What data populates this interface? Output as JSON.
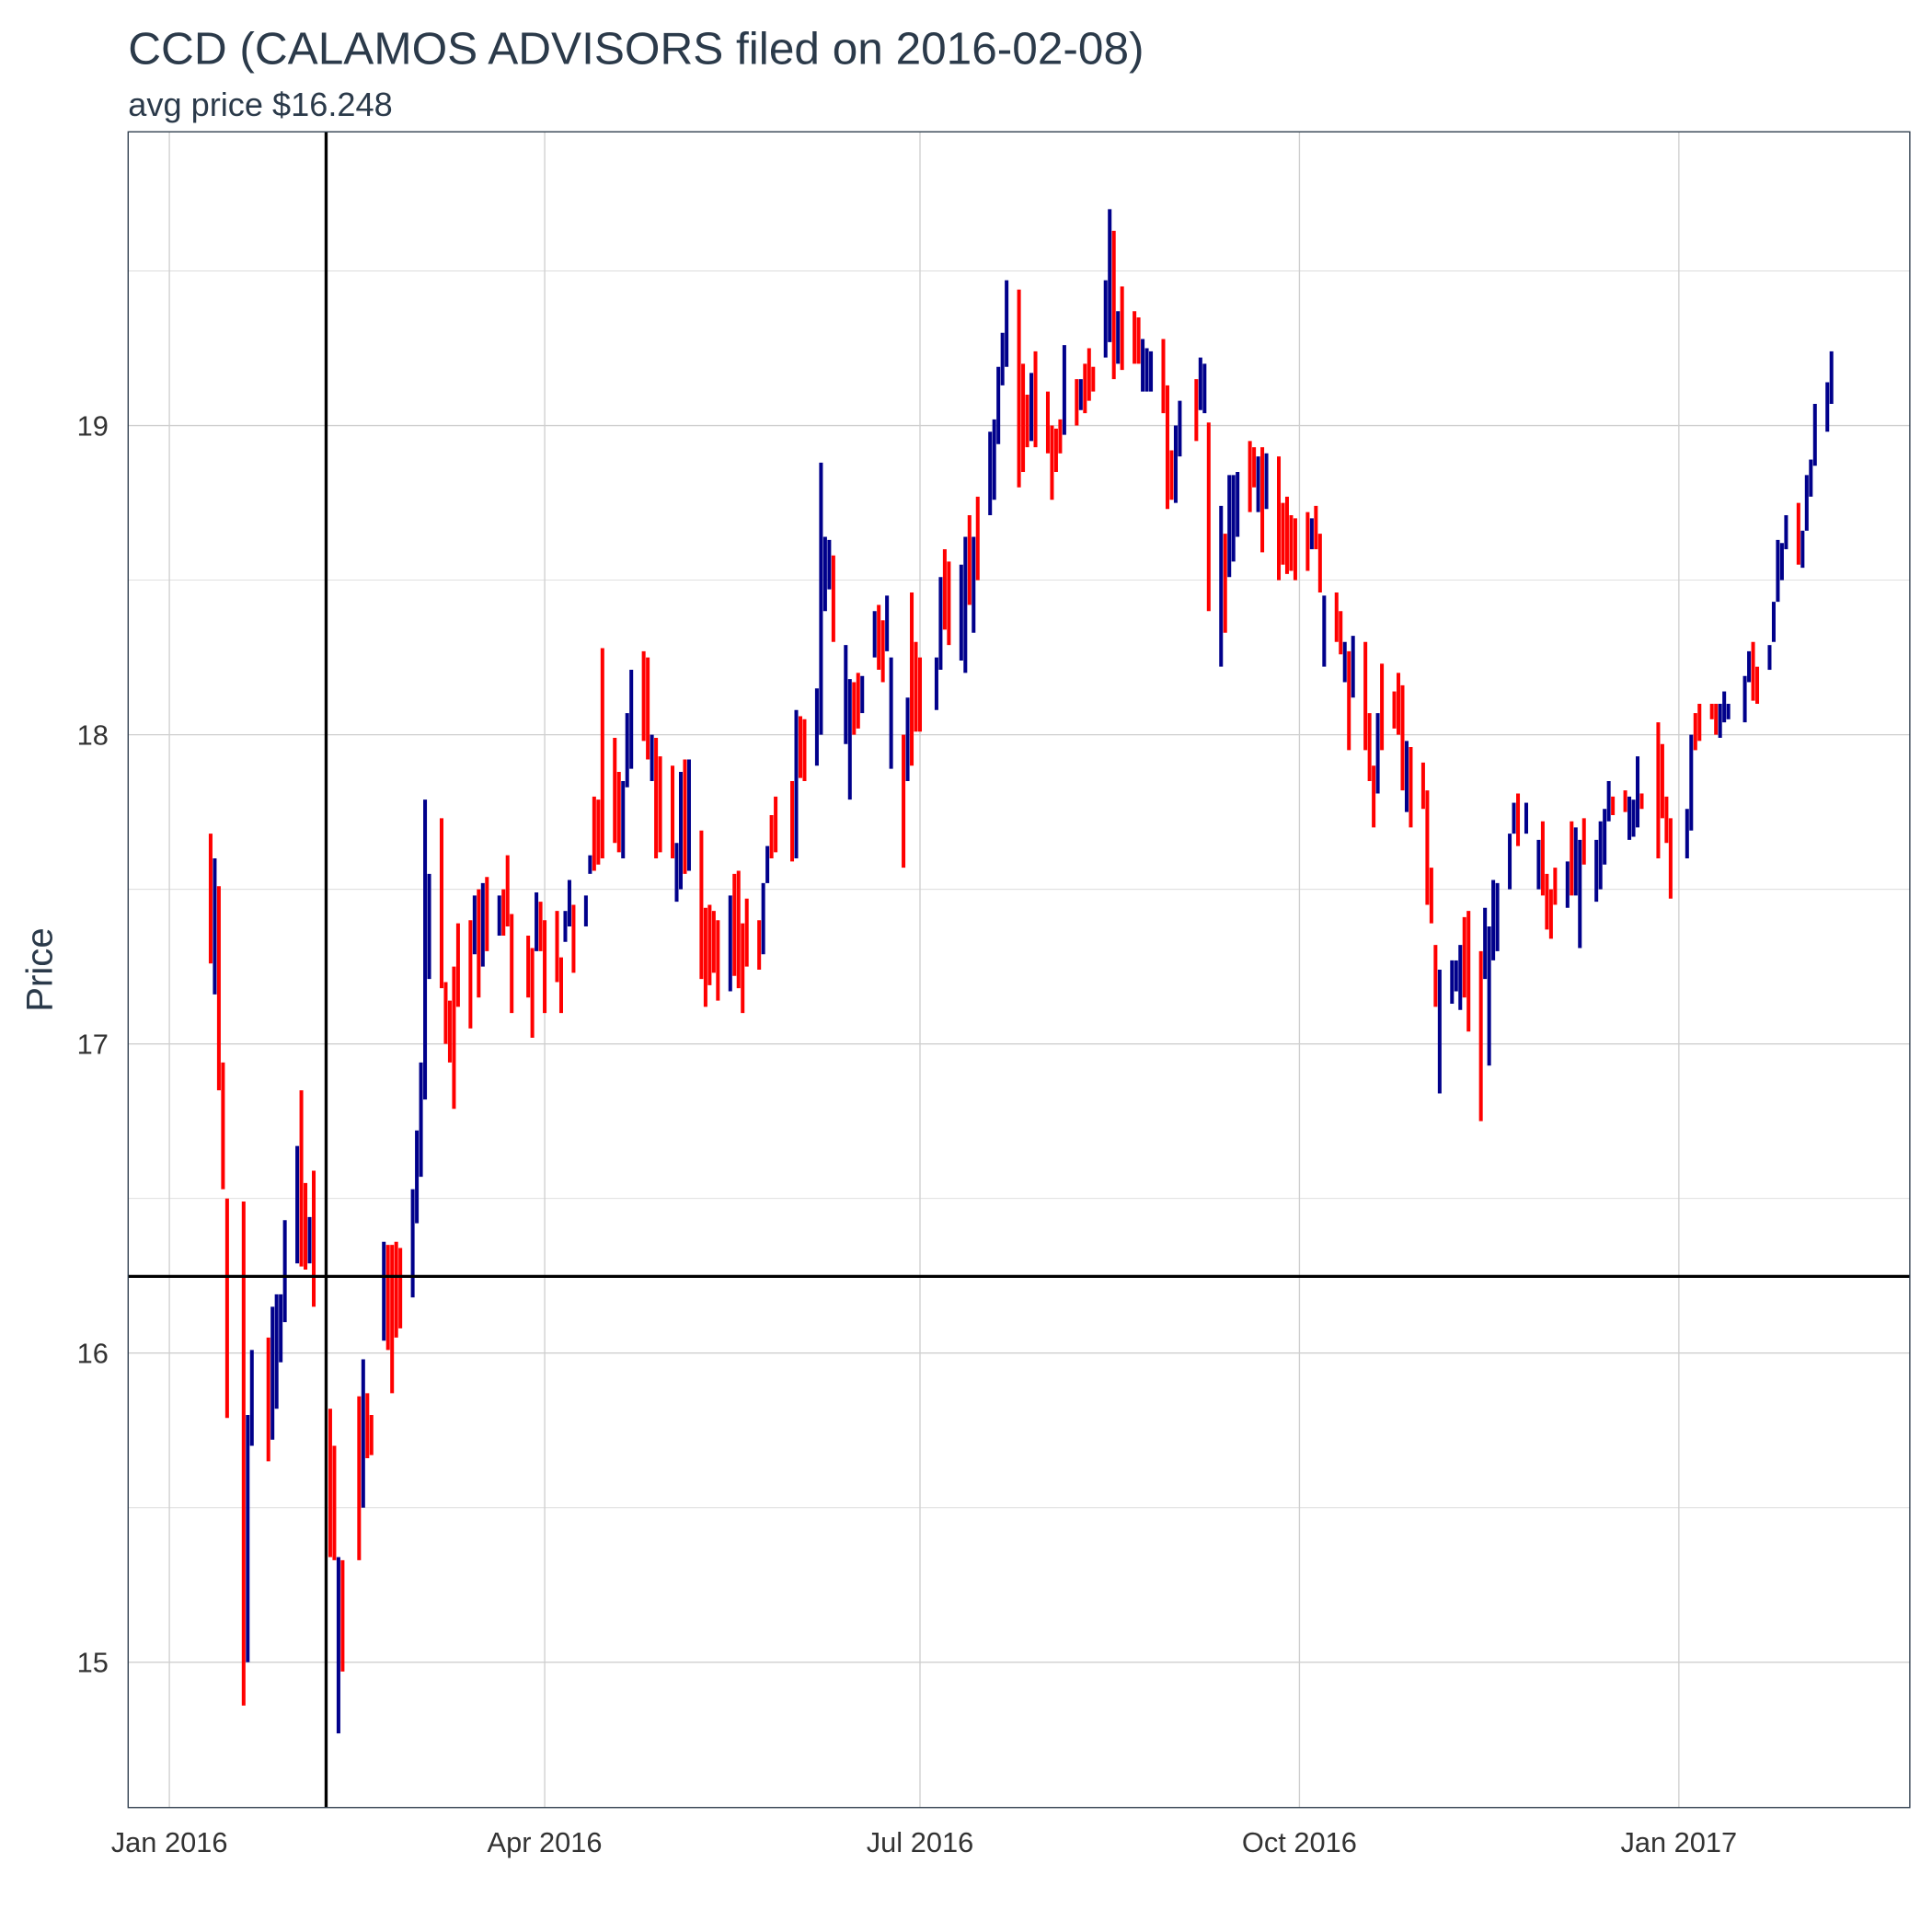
{
  "chart_data": {
    "type": "range-bar",
    "title": "CCD (CALAMOS ADVISORS filed on 2016-02-08)",
    "subtitle": "avg price $16.248",
    "y_label": "Price",
    "xlim": [
      "2015-12-22",
      "2017-02-26"
    ],
    "ylim": [
      14.53,
      19.95
    ],
    "yticks": [
      15,
      16,
      17,
      18,
      19
    ],
    "minor_yticks": [
      15.5,
      16.5,
      17.5,
      18.5,
      19.5
    ],
    "xticks": [
      {
        "value": "2016-01-01",
        "label": "Jan 2016"
      },
      {
        "value": "2016-04-01",
        "label": "Apr 2016"
      },
      {
        "value": "2016-07-01",
        "label": "Jul 2016"
      },
      {
        "value": "2016-10-01",
        "label": "Oct 2016"
      },
      {
        "value": "2017-01-01",
        "label": "Jan 2017"
      }
    ],
    "grid": true,
    "vline": "2016-02-08",
    "hline": 16.248,
    "series": [
      {
        "color": "#00008b",
        "x": [
          "2016-01-12",
          "2016-01-20",
          "2016-01-21",
          "2016-01-26",
          "2016-01-27",
          "2016-01-28",
          "2016-01-29",
          "2016-02-01",
          "2016-02-04",
          "2016-02-11",
          "2016-02-17",
          "2016-02-22",
          "2016-02-29",
          "2016-03-01",
          "2016-03-02",
          "2016-03-03",
          "2016-03-04",
          "2016-03-15",
          "2016-03-17",
          "2016-03-21",
          "2016-03-30",
          "2016-04-06",
          "2016-04-07",
          "2016-04-11",
          "2016-04-12",
          "2016-04-20",
          "2016-04-21",
          "2016-04-22",
          "2016-04-27",
          "2016-05-03",
          "2016-05-04",
          "2016-05-06",
          "2016-05-16",
          "2016-05-24",
          "2016-05-25",
          "2016-06-01",
          "2016-06-06",
          "2016-06-07",
          "2016-06-08",
          "2016-06-09",
          "2016-06-13",
          "2016-06-14",
          "2016-06-17",
          "2016-06-20",
          "2016-06-23",
          "2016-06-24",
          "2016-06-28",
          "2016-07-05",
          "2016-07-06",
          "2016-07-11",
          "2016-07-12",
          "2016-07-14",
          "2016-07-18",
          "2016-07-19",
          "2016-07-20",
          "2016-07-21",
          "2016-07-22",
          "2016-07-28",
          "2016-08-05",
          "2016-08-09",
          "2016-08-15",
          "2016-08-16",
          "2016-08-18",
          "2016-08-24",
          "2016-08-25",
          "2016-08-26",
          "2016-09-01",
          "2016-09-02",
          "2016-09-07",
          "2016-09-08",
          "2016-09-12",
          "2016-09-14",
          "2016-09-15",
          "2016-09-16",
          "2016-09-21",
          "2016-09-23",
          "2016-10-04",
          "2016-10-07",
          "2016-10-12",
          "2016-10-14",
          "2016-10-20",
          "2016-10-27",
          "2016-11-04",
          "2016-11-07",
          "2016-11-08",
          "2016-11-09",
          "2016-11-15",
          "2016-11-16",
          "2016-11-17",
          "2016-11-18",
          "2016-11-21",
          "2016-11-22",
          "2016-11-25",
          "2016-11-28",
          "2016-12-05",
          "2016-12-07",
          "2016-12-08",
          "2016-12-12",
          "2016-12-13",
          "2016-12-14",
          "2016-12-15",
          "2016-12-20",
          "2016-12-21",
          "2016-12-22",
          "2017-01-03",
          "2017-01-04",
          "2017-01-11",
          "2017-01-12",
          "2017-01-13",
          "2017-01-17",
          "2017-01-18",
          "2017-01-23",
          "2017-01-24",
          "2017-01-25",
          "2017-01-26",
          "2017-01-27",
          "2017-01-31",
          "2017-02-01",
          "2017-02-02",
          "2017-02-03",
          "2017-02-06",
          "2017-02-07"
        ],
        "low": [
          17.16,
          15.0,
          15.7,
          15.72,
          15.82,
          15.97,
          16.1,
          16.29,
          16.29,
          14.77,
          15.5,
          16.04,
          16.18,
          16.42,
          16.57,
          16.82,
          17.21,
          17.29,
          17.25,
          17.35,
          17.3,
          17.33,
          17.38,
          17.38,
          17.55,
          17.6,
          17.83,
          17.89,
          17.85,
          17.46,
          17.5,
          17.56,
          17.17,
          17.29,
          17.52,
          17.6,
          17.9,
          18.0,
          18.4,
          18.47,
          17.97,
          17.79,
          18.07,
          18.25,
          18.27,
          17.89,
          17.85,
          18.08,
          18.21,
          18.24,
          18.2,
          18.33,
          18.71,
          18.76,
          18.94,
          19.13,
          19.19,
          18.95,
          18.97,
          19.05,
          19.22,
          19.27,
          19.2,
          19.11,
          19.11,
          19.11,
          18.75,
          18.9,
          19.05,
          19.04,
          18.22,
          18.51,
          18.56,
          18.64,
          18.72,
          18.73,
          18.6,
          18.22,
          18.17,
          18.12,
          17.81,
          17.75,
          16.84,
          17.13,
          17.17,
          17.11,
          17.21,
          16.93,
          17.27,
          17.3,
          17.5,
          17.68,
          17.68,
          17.5,
          17.44,
          17.48,
          17.31,
          17.46,
          17.5,
          17.58,
          17.72,
          17.66,
          17.67,
          17.7,
          17.6,
          17.69,
          17.99,
          18.04,
          18.05,
          18.04,
          18.17,
          18.21,
          18.3,
          18.43,
          18.5,
          18.6,
          18.54,
          18.66,
          18.77,
          18.87,
          18.98,
          19.07
        ],
        "high": [
          17.6,
          15.8,
          16.01,
          16.15,
          16.19,
          16.19,
          16.43,
          16.67,
          16.44,
          15.34,
          15.98,
          16.36,
          16.53,
          16.72,
          16.94,
          17.79,
          17.55,
          17.48,
          17.52,
          17.48,
          17.49,
          17.43,
          17.53,
          17.48,
          17.61,
          17.85,
          18.07,
          18.21,
          18.0,
          17.65,
          17.88,
          17.92,
          17.48,
          17.52,
          17.64,
          18.08,
          18.15,
          18.88,
          18.64,
          18.63,
          18.29,
          18.18,
          18.19,
          18.4,
          18.45,
          18.25,
          18.12,
          18.25,
          18.51,
          18.55,
          18.64,
          18.64,
          18.98,
          19.02,
          19.19,
          19.3,
          19.47,
          19.17,
          19.26,
          19.15,
          19.47,
          19.7,
          19.37,
          19.28,
          19.25,
          19.24,
          19.0,
          19.08,
          19.22,
          19.2,
          18.74,
          18.84,
          18.84,
          18.85,
          18.9,
          18.91,
          18.7,
          18.45,
          18.3,
          18.32,
          18.07,
          17.98,
          17.24,
          17.27,
          17.27,
          17.32,
          17.44,
          17.38,
          17.53,
          17.52,
          17.68,
          17.78,
          17.78,
          17.66,
          17.59,
          17.7,
          17.66,
          17.66,
          17.72,
          17.76,
          17.85,
          17.8,
          17.79,
          17.93,
          17.76,
          18.0,
          18.1,
          18.14,
          18.1,
          18.19,
          18.27,
          18.29,
          18.43,
          18.63,
          18.62,
          18.71,
          18.66,
          18.84,
          18.89,
          19.07,
          19.14,
          19.24
        ]
      },
      {
        "color": "#ff0000",
        "x": [
          "2016-01-11",
          "2016-01-13",
          "2016-01-14",
          "2016-01-15",
          "2016-01-19",
          "2016-01-25",
          "2016-02-02",
          "2016-02-03",
          "2016-02-05",
          "2016-02-09",
          "2016-02-10",
          "2016-02-12",
          "2016-02-16",
          "2016-02-18",
          "2016-02-19",
          "2016-02-23",
          "2016-02-24",
          "2016-02-25",
          "2016-02-26",
          "2016-03-07",
          "2016-03-08",
          "2016-03-09",
          "2016-03-10",
          "2016-03-11",
          "2016-03-14",
          "2016-03-16",
          "2016-03-18",
          "2016-03-22",
          "2016-03-23",
          "2016-03-24",
          "2016-03-28",
          "2016-03-29",
          "2016-03-31",
          "2016-04-01",
          "2016-04-04",
          "2016-04-05",
          "2016-04-08",
          "2016-04-13",
          "2016-04-14",
          "2016-04-15",
          "2016-04-18",
          "2016-04-19",
          "2016-04-25",
          "2016-04-26",
          "2016-04-28",
          "2016-04-29",
          "2016-05-02",
          "2016-05-05",
          "2016-05-09",
          "2016-05-10",
          "2016-05-11",
          "2016-05-12",
          "2016-05-13",
          "2016-05-17",
          "2016-05-18",
          "2016-05-19",
          "2016-05-20",
          "2016-05-23",
          "2016-05-26",
          "2016-05-27",
          "2016-05-31",
          "2016-06-02",
          "2016-06-03",
          "2016-06-10",
          "2016-06-15",
          "2016-06-16",
          "2016-06-21",
          "2016-06-22",
          "2016-06-27",
          "2016-06-29",
          "2016-06-30",
          "2016-07-01",
          "2016-07-07",
          "2016-07-08",
          "2016-07-13",
          "2016-07-15",
          "2016-07-25",
          "2016-07-26",
          "2016-07-27",
          "2016-07-29",
          "2016-08-01",
          "2016-08-02",
          "2016-08-03",
          "2016-08-04",
          "2016-08-08",
          "2016-08-10",
          "2016-08-11",
          "2016-08-12",
          "2016-08-17",
          "2016-08-19",
          "2016-08-22",
          "2016-08-23",
          "2016-08-29",
          "2016-08-30",
          "2016-08-31",
          "2016-09-06",
          "2016-09-09",
          "2016-09-13",
          "2016-09-19",
          "2016-09-20",
          "2016-09-22",
          "2016-09-26",
          "2016-09-27",
          "2016-09-28",
          "2016-09-29",
          "2016-09-30",
          "2016-10-03",
          "2016-10-05",
          "2016-10-06",
          "2016-10-10",
          "2016-10-11",
          "2016-10-13",
          "2016-10-17",
          "2016-10-18",
          "2016-10-19",
          "2016-10-21",
          "2016-10-24",
          "2016-10-25",
          "2016-10-26",
          "2016-10-28",
          "2016-10-31",
          "2016-11-01",
          "2016-11-02",
          "2016-11-03",
          "2016-11-10",
          "2016-11-11",
          "2016-11-14",
          "2016-11-23",
          "2016-11-29",
          "2016-11-30",
          "2016-12-01",
          "2016-12-02",
          "2016-12-06",
          "2016-12-09",
          "2016-12-16",
          "2016-12-19",
          "2016-12-23",
          "2016-12-27",
          "2016-12-28",
          "2016-12-29",
          "2016-12-30",
          "2017-01-05",
          "2017-01-06",
          "2017-01-09",
          "2017-01-10",
          "2017-01-19",
          "2017-01-20",
          "2017-01-30"
        ],
        "low": [
          17.26,
          16.85,
          16.53,
          15.79,
          14.86,
          15.65,
          16.28,
          16.27,
          16.15,
          15.34,
          15.33,
          14.97,
          15.33,
          15.66,
          15.67,
          16.01,
          15.87,
          16.05,
          16.08,
          17.18,
          17.0,
          16.94,
          16.79,
          17.12,
          17.05,
          17.15,
          17.3,
          17.35,
          17.38,
          17.1,
          17.15,
          17.02,
          17.3,
          17.1,
          17.2,
          17.1,
          17.23,
          17.56,
          17.58,
          17.6,
          17.65,
          17.62,
          17.98,
          17.92,
          17.6,
          17.62,
          17.6,
          17.55,
          17.21,
          17.12,
          17.19,
          17.23,
          17.14,
          17.22,
          17.18,
          17.1,
          17.25,
          17.24,
          17.6,
          17.62,
          17.59,
          17.86,
          17.85,
          18.3,
          18.0,
          18.02,
          18.21,
          18.17,
          17.57,
          17.9,
          18.01,
          18.01,
          18.34,
          18.29,
          18.42,
          18.5,
          18.8,
          18.85,
          18.93,
          18.93,
          18.91,
          18.76,
          18.85,
          18.91,
          19.0,
          19.04,
          19.08,
          19.11,
          19.15,
          19.18,
          19.2,
          19.2,
          19.04,
          18.73,
          18.76,
          18.95,
          18.4,
          18.33,
          18.72,
          18.8,
          18.59,
          18.5,
          18.55,
          18.52,
          18.53,
          18.5,
          18.53,
          18.6,
          18.46,
          18.3,
          18.26,
          17.95,
          17.95,
          17.85,
          17.7,
          17.95,
          18.02,
          18.0,
          17.82,
          17.7,
          17.76,
          17.45,
          17.39,
          17.12,
          17.15,
          17.04,
          16.75,
          17.64,
          17.48,
          17.37,
          17.34,
          17.45,
          17.48,
          17.58,
          17.74,
          17.75,
          17.76,
          17.6,
          17.73,
          17.65,
          17.47,
          17.95,
          17.98,
          18.05,
          18.0,
          18.11,
          18.1,
          18.55
        ],
        "high": [
          17.68,
          17.51,
          16.94,
          16.5,
          16.49,
          16.05,
          16.85,
          16.55,
          16.59,
          15.82,
          15.7,
          15.33,
          15.86,
          15.87,
          15.8,
          16.35,
          16.35,
          16.36,
          16.34,
          17.73,
          17.2,
          17.14,
          17.25,
          17.39,
          17.4,
          17.5,
          17.54,
          17.5,
          17.61,
          17.42,
          17.35,
          17.31,
          17.46,
          17.4,
          17.43,
          17.28,
          17.45,
          17.8,
          17.79,
          18.28,
          17.99,
          17.88,
          18.27,
          18.25,
          17.99,
          17.93,
          17.9,
          17.92,
          17.69,
          17.44,
          17.45,
          17.43,
          17.4,
          17.55,
          17.56,
          17.39,
          17.47,
          17.4,
          17.74,
          17.8,
          17.85,
          18.06,
          18.05,
          18.58,
          18.17,
          18.2,
          18.42,
          18.37,
          18.0,
          18.46,
          18.3,
          18.25,
          18.6,
          18.56,
          18.71,
          18.77,
          19.44,
          19.2,
          19.1,
          19.24,
          19.11,
          19.0,
          18.99,
          19.02,
          19.15,
          19.2,
          19.25,
          19.19,
          19.63,
          19.45,
          19.37,
          19.35,
          19.28,
          19.13,
          18.92,
          19.15,
          19.01,
          18.65,
          18.95,
          18.93,
          18.93,
          18.9,
          18.75,
          18.77,
          18.71,
          18.7,
          18.72,
          18.74,
          18.65,
          18.46,
          18.4,
          18.27,
          18.3,
          18.07,
          17.9,
          18.23,
          18.14,
          18.2,
          18.16,
          17.96,
          17.91,
          17.82,
          17.57,
          17.32,
          17.41,
          17.43,
          17.3,
          17.81,
          17.72,
          17.55,
          17.5,
          17.57,
          17.72,
          17.73,
          17.8,
          17.82,
          17.81,
          18.04,
          17.97,
          17.8,
          17.73,
          18.07,
          18.1,
          18.1,
          18.1,
          18.3,
          18.22,
          18.75
        ]
      }
    ]
  }
}
